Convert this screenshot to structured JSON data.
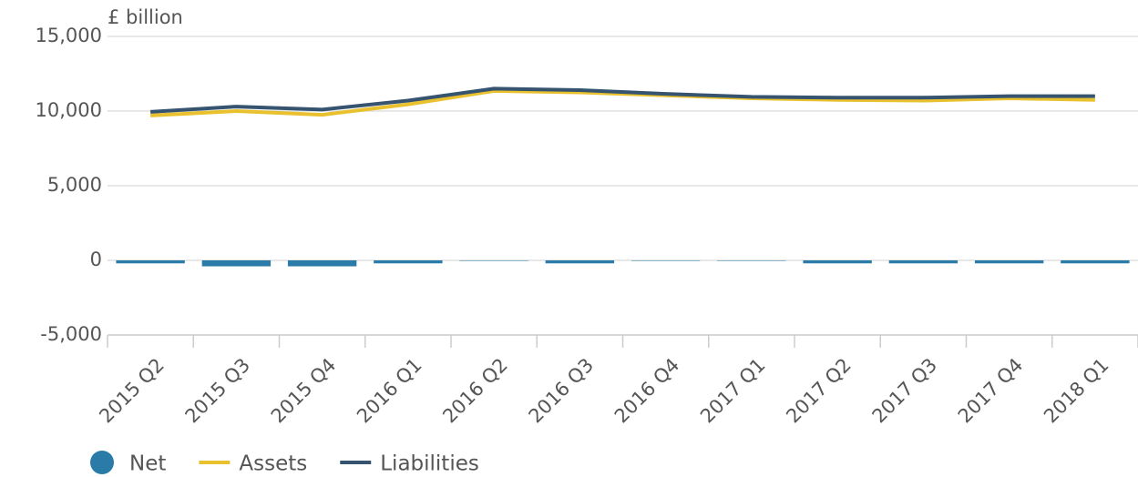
{
  "chart_data": {
    "type": "combo",
    "y_label": "£ billion",
    "categories": [
      "2015 Q2",
      "2015 Q3",
      "2015 Q4",
      "2016 Q1",
      "2016 Q2",
      "2016 Q3",
      "2016 Q4",
      "2017 Q1",
      "2017 Q2",
      "2017 Q3",
      "2017 Q4",
      "2018 Q1"
    ],
    "series": [
      {
        "name": "Net",
        "type": "bar",
        "color": "#2a7ba8",
        "values": [
          -200,
          -400,
          -400,
          -200,
          -30,
          -200,
          -30,
          -30,
          -200,
          -200,
          -200,
          -200
        ]
      },
      {
        "name": "Assets",
        "type": "line",
        "color": "#e9c12f",
        "values": [
          9700,
          10000,
          9750,
          10450,
          11350,
          11250,
          11050,
          10850,
          10750,
          10700,
          10850,
          10750
        ]
      },
      {
        "name": "Liabilities",
        "type": "line",
        "color": "#36536f",
        "values": [
          9950,
          10300,
          10100,
          10700,
          11500,
          11400,
          11150,
          10950,
          10900,
          10900,
          11000,
          11000
        ]
      }
    ],
    "ylim": [
      -5000,
      15000
    ],
    "yticks": [
      {
        "value": -5000,
        "label": "-5,000"
      },
      0,
      {
        "value": 5000,
        "label": "5,000"
      },
      {
        "value": 10000,
        "label": "10,000"
      },
      {
        "value": 15000,
        "label": "15,000"
      }
    ],
    "grid": true
  }
}
